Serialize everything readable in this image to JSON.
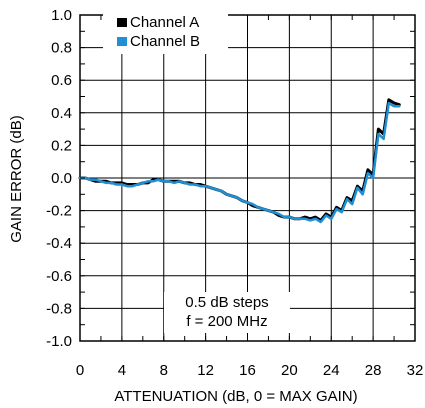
{
  "chart_data": {
    "type": "line",
    "title": "",
    "xlabel": "ATTENUATION (dB, 0 = MAX GAIN)",
    "ylabel": "GAIN ERROR (dB)",
    "xlim": [
      0,
      32
    ],
    "ylim": [
      -1.0,
      1.0
    ],
    "x_ticks": [
      0,
      4,
      8,
      12,
      16,
      20,
      24,
      28,
      32
    ],
    "x_tick_labels": [
      "0",
      "4",
      "8",
      "12",
      "16",
      "20",
      "24",
      "28",
      "32"
    ],
    "y_ticks": [
      1.0,
      0.8,
      0.6,
      0.4,
      0.2,
      0.0,
      -0.2,
      -0.4,
      -0.6,
      -0.8,
      -1.0
    ],
    "y_tick_labels": [
      "1.0",
      "0.8",
      "0.6",
      "0.4",
      "0.2",
      "0.0",
      "-0.2",
      "-0.4",
      "-0.6",
      "-0.8",
      "-1.0"
    ],
    "grid": true,
    "legend_position": "top-left",
    "annotation": [
      "0.5 dB steps",
      "f = 200 MHz"
    ],
    "series": [
      {
        "name": "Channel A",
        "color": "#000000",
        "x": [
          0,
          0.5,
          1,
          1.5,
          2,
          2.5,
          3,
          3.5,
          4,
          4.5,
          5,
          5.5,
          6,
          6.5,
          7,
          7.5,
          8,
          8.5,
          9,
          9.5,
          10,
          10.5,
          11,
          11.5,
          12,
          12.5,
          13,
          13.5,
          14,
          14.5,
          15,
          15.5,
          16,
          16.5,
          17,
          17.5,
          18,
          18.5,
          19,
          19.5,
          20,
          20.5,
          21,
          21.5,
          22,
          22.5,
          23,
          23.5,
          24,
          24.5,
          25,
          25.5,
          26,
          26.5,
          27,
          27.5,
          28,
          28.5,
          29,
          29.5,
          30,
          30.5
        ],
        "values": [
          0.0,
          0.0,
          -0.01,
          -0.02,
          -0.02,
          -0.02,
          -0.03,
          -0.03,
          -0.03,
          -0.04,
          -0.04,
          -0.04,
          -0.03,
          -0.03,
          -0.01,
          -0.01,
          -0.02,
          -0.02,
          -0.02,
          -0.02,
          -0.03,
          -0.03,
          -0.04,
          -0.04,
          -0.05,
          -0.06,
          -0.07,
          -0.08,
          -0.1,
          -0.11,
          -0.12,
          -0.14,
          -0.15,
          -0.17,
          -0.18,
          -0.19,
          -0.2,
          -0.21,
          -0.23,
          -0.24,
          -0.24,
          -0.25,
          -0.25,
          -0.24,
          -0.25,
          -0.24,
          -0.26,
          -0.22,
          -0.24,
          -0.18,
          -0.2,
          -0.12,
          -0.14,
          -0.05,
          -0.08,
          0.05,
          0.02,
          0.3,
          0.27,
          0.48,
          0.46,
          0.45
        ]
      },
      {
        "name": "Channel B",
        "color": "#1f8fd6",
        "x": [
          0,
          0.5,
          1,
          1.5,
          2,
          2.5,
          3,
          3.5,
          4,
          4.5,
          5,
          5.5,
          6,
          6.5,
          7,
          7.5,
          8,
          8.5,
          9,
          9.5,
          10,
          10.5,
          11,
          11.5,
          12,
          12.5,
          13,
          13.5,
          14,
          14.5,
          15,
          15.5,
          16,
          16.5,
          17,
          17.5,
          18,
          18.5,
          19,
          19.5,
          20,
          20.5,
          21,
          21.5,
          22,
          22.5,
          23,
          23.5,
          24,
          24.5,
          25,
          25.5,
          26,
          26.5,
          27,
          27.5,
          28,
          28.5,
          29,
          29.5,
          30,
          30.5
        ],
        "values": [
          0.0,
          0.0,
          -0.01,
          -0.01,
          -0.02,
          -0.03,
          -0.03,
          -0.04,
          -0.04,
          -0.05,
          -0.05,
          -0.04,
          -0.03,
          -0.02,
          -0.02,
          -0.01,
          -0.02,
          -0.02,
          -0.03,
          -0.02,
          -0.03,
          -0.04,
          -0.04,
          -0.05,
          -0.05,
          -0.06,
          -0.07,
          -0.08,
          -0.1,
          -0.11,
          -0.12,
          -0.14,
          -0.15,
          -0.16,
          -0.18,
          -0.19,
          -0.2,
          -0.21,
          -0.22,
          -0.24,
          -0.24,
          -0.25,
          -0.25,
          -0.25,
          -0.26,
          -0.25,
          -0.27,
          -0.23,
          -0.25,
          -0.19,
          -0.21,
          -0.13,
          -0.16,
          -0.06,
          -0.1,
          0.03,
          0.0,
          0.27,
          0.24,
          0.46,
          0.44,
          0.44
        ]
      }
    ]
  }
}
